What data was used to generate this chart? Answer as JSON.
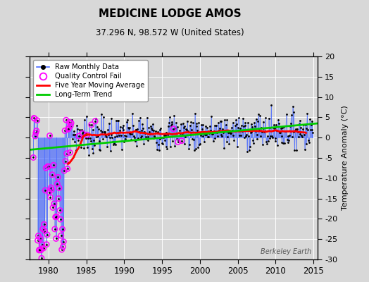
{
  "title": "MEDICINE LODGE AMOS",
  "subtitle": "37.296 N, 98.572 W (United States)",
  "ylabel_right": "Temperature Anomaly (°C)",
  "watermark": "Berkeley Earth",
  "xlim": [
    1977.5,
    2015.5
  ],
  "ylim": [
    -30,
    20
  ],
  "yticks": [
    -30,
    -25,
    -20,
    -15,
    -10,
    -5,
    0,
    5,
    10,
    15,
    20
  ],
  "xticks": [
    1980,
    1985,
    1990,
    1995,
    2000,
    2005,
    2010,
    2015
  ],
  "bg_color": "#d8d8d8",
  "plot_bg_color": "#d8d8d8",
  "raw_line_color": "#4466ff",
  "raw_dot_color": "#000000",
  "qc_fail_color": "#ff00ff",
  "moving_avg_color": "#ff0000",
  "trend_color": "#00cc00",
  "trend_x": [
    1977.5,
    2015.5
  ],
  "trend_y": [
    -3.0,
    3.5
  ],
  "grid_color": "#bbbbbb"
}
